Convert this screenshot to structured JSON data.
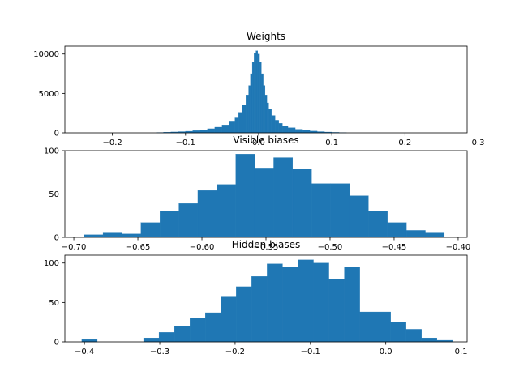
{
  "colors": {
    "bar": "#1f77b4",
    "axis": "#000000",
    "background": "#ffffff"
  },
  "chart_data": [
    {
      "type": "histogram",
      "title": "Weights",
      "xlabel": "",
      "ylabel": "",
      "xlim": [
        -0.265,
        0.285
      ],
      "ylim": [
        0,
        11000
      ],
      "xticks": [
        -0.2,
        -0.1,
        0.0,
        0.1,
        0.2,
        0.3
      ],
      "xtick_labels": [
        "−0.2",
        "−0.1",
        "0.0",
        "0.1",
        "0.2",
        "0.3"
      ],
      "yticks": [
        0,
        5000,
        10000
      ],
      "ytick_labels": [
        "0",
        "5000",
        "10000"
      ],
      "bin_centers": [
        -0.135,
        -0.125,
        -0.115,
        -0.105,
        -0.095,
        -0.085,
        -0.075,
        -0.065,
        -0.055,
        -0.045,
        -0.035,
        -0.03,
        -0.025,
        -0.02,
        -0.015,
        -0.0125,
        -0.01,
        -0.0075,
        -0.005,
        -0.0025,
        0.0,
        0.0025,
        0.005,
        0.0075,
        0.01,
        0.0125,
        0.015,
        0.02,
        0.025,
        0.03,
        0.035,
        0.045,
        0.055,
        0.065,
        0.075,
        0.085,
        0.095,
        0.105,
        0.115
      ],
      "counts": [
        40,
        80,
        110,
        150,
        200,
        280,
        380,
        520,
        720,
        1000,
        1500,
        1900,
        2600,
        3500,
        4800,
        6000,
        7500,
        9000,
        10100,
        10400,
        10000,
        9000,
        7500,
        6000,
        4800,
        3800,
        3000,
        2200,
        1600,
        1200,
        900,
        650,
        450,
        320,
        220,
        150,
        100,
        60,
        30
      ]
    },
    {
      "type": "histogram",
      "title": "Visible biases",
      "xlabel": "",
      "ylabel": "",
      "xlim": [
        -0.707,
        -0.393
      ],
      "ylim": [
        0,
        100
      ],
      "xticks": [
        -0.7,
        -0.65,
        -0.6,
        -0.55,
        -0.5,
        -0.45,
        -0.4
      ],
      "xtick_labels": [
        "−0.70",
        "−0.65",
        "−0.60",
        "−0.55",
        "−0.50",
        "−0.45",
        "−0.40"
      ],
      "yticks": [
        0,
        50,
        100
      ],
      "ytick_labels": [
        "0",
        "50",
        "100"
      ],
      "bin_edges": [
        -0.692,
        -0.6772,
        -0.6624,
        -0.6476,
        -0.6328,
        -0.618,
        -0.6032,
        -0.5884,
        -0.5736,
        -0.5588,
        -0.544,
        -0.5292,
        -0.5144,
        -0.4996,
        -0.4848,
        -0.47,
        -0.4552,
        -0.4404,
        -0.4256,
        -0.4108,
        -0.396
      ],
      "counts": [
        3,
        6,
        4,
        17,
        30,
        39,
        54,
        61,
        96,
        80,
        92,
        79,
        62,
        62,
        48,
        30,
        17,
        8,
        6,
        0
      ]
    },
    {
      "type": "histogram",
      "title": "Hidden biases",
      "xlabel": "",
      "ylabel": "",
      "xlim": [
        -0.426,
        0.108
      ],
      "ylim": [
        0,
        110
      ],
      "xticks": [
        -0.4,
        -0.3,
        -0.2,
        -0.1,
        0.0,
        0.1
      ],
      "xtick_labels": [
        "−0.4",
        "−0.3",
        "−0.2",
        "−0.1",
        "0.0",
        "0.1"
      ],
      "yticks": [
        0,
        50,
        100
      ],
      "ytick_labels": [
        "0",
        "50",
        "100"
      ],
      "bin_edges": [
        -0.4035,
        -0.383,
        -0.3625,
        -0.342,
        -0.3215,
        -0.301,
        -0.2805,
        -0.26,
        -0.2395,
        -0.219,
        -0.1985,
        -0.178,
        -0.1575,
        -0.137,
        -0.1165,
        -0.096,
        -0.0755,
        -0.055,
        -0.0345,
        -0.014,
        0.0065,
        0.027,
        0.0475,
        0.068,
        0.0885
      ],
      "counts": [
        3,
        0,
        0,
        0,
        5,
        12,
        20,
        30,
        37,
        58,
        70,
        83,
        99,
        95,
        104,
        100,
        80,
        95,
        38,
        38,
        25,
        16,
        5,
        2
      ]
    }
  ]
}
